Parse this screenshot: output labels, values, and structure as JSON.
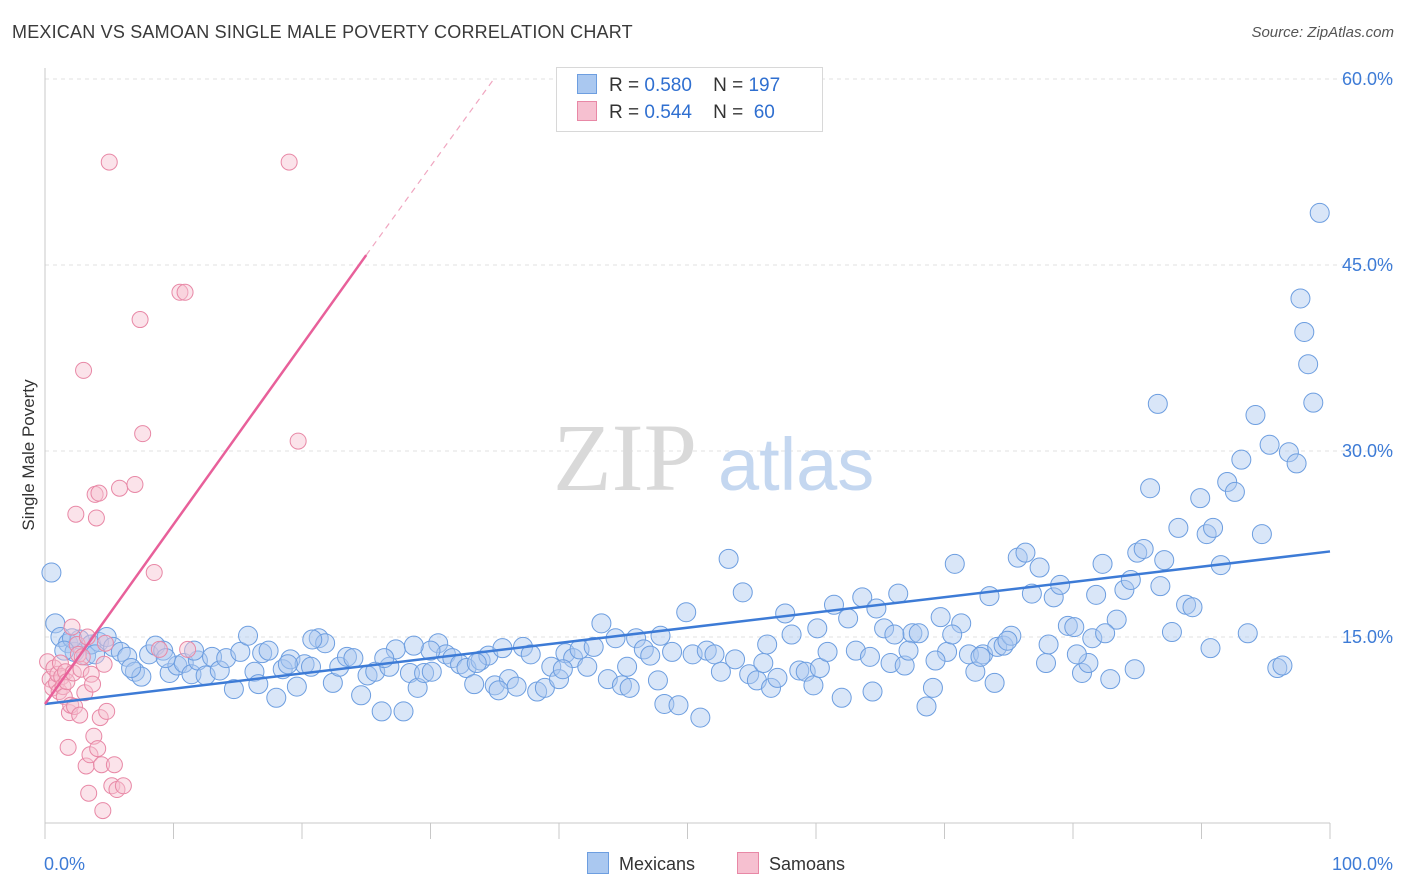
{
  "header": {
    "title": "MEXICAN VS SAMOAN SINGLE MALE POVERTY CORRELATION CHART",
    "source": "Source: ZipAtlas.com"
  },
  "watermark": {
    "zip": "ZIP",
    "atlas": "atlas"
  },
  "legend": {
    "rows": [
      {
        "r_label": "R =",
        "r_value": "0.580",
        "n_label": "N =",
        "n_value": "197",
        "color": "#aac8f0",
        "border": "#6d9ee0"
      },
      {
        "r_label": "R =",
        "r_value": "0.544",
        "n_label": "N =",
        "n_value": "60",
        "color": "#f6c0d0",
        "border": "#e888a6"
      }
    ]
  },
  "bottom_legend": [
    {
      "label": "Mexicans",
      "color": "#aac8f0",
      "border": "#6d9ee0"
    },
    {
      "label": "Samoans",
      "color": "#f6c0d0",
      "border": "#e888a6"
    }
  ],
  "chart_data": {
    "type": "scatter",
    "title": "MEXICAN VS SAMOAN SINGLE MALE POVERTY CORRELATION CHART",
    "xlabel": "",
    "ylabel": "Single Male Poverty",
    "xlim": [
      0,
      100
    ],
    "ylim": [
      0,
      60
    ],
    "x_tick_labels": [
      "0.0%",
      "100.0%"
    ],
    "y_ticks": [
      15,
      30,
      45,
      60
    ],
    "y_tick_labels": [
      "15.0%",
      "30.0%",
      "45.0%",
      "60.0%"
    ],
    "grid": true,
    "legend_position": "top-center",
    "colors": {
      "mexicans": "#3d7bd6",
      "samoans": "#e8609a"
    },
    "series": [
      {
        "name": "Mexicans",
        "r": 0.58,
        "n": 197,
        "trend": {
          "x": [
            0,
            100
          ],
          "y": [
            9.6,
            21.9
          ]
        },
        "points": [
          [
            0.5,
            20.2
          ],
          [
            0.8,
            16.1
          ],
          [
            1.2,
            15.0
          ],
          [
            1.8,
            14.5
          ],
          [
            2.3,
            13.8
          ],
          [
            2.7,
            14.8
          ],
          [
            3.2,
            13.5
          ],
          [
            3.6,
            14.4
          ],
          [
            4.2,
            14.6
          ],
          [
            4.8,
            15.0
          ],
          [
            5.3,
            14.2
          ],
          [
            5.9,
            13.8
          ],
          [
            6.4,
            13.4
          ],
          [
            7.0,
            12.2
          ],
          [
            7.5,
            11.8
          ],
          [
            8.1,
            13.6
          ],
          [
            8.6,
            14.3
          ],
          [
            9.2,
            13.9
          ],
          [
            9.7,
            12.1
          ],
          [
            10.3,
            12.7
          ],
          [
            10.8,
            12.9
          ],
          [
            11.4,
            12.0
          ],
          [
            11.9,
            13.1
          ],
          [
            12.5,
            11.9
          ],
          [
            13.0,
            13.4
          ],
          [
            13.6,
            12.3
          ],
          [
            14.1,
            13.3
          ],
          [
            14.7,
            10.8
          ],
          [
            15.2,
            13.8
          ],
          [
            15.8,
            15.1
          ],
          [
            16.3,
            12.2
          ],
          [
            16.9,
            13.7
          ],
          [
            17.4,
            13.9
          ],
          [
            18.0,
            10.1
          ],
          [
            18.5,
            12.4
          ],
          [
            19.1,
            13.2
          ],
          [
            19.6,
            11.0
          ],
          [
            20.2,
            12.8
          ],
          [
            20.7,
            12.6
          ],
          [
            21.3,
            14.9
          ],
          [
            21.8,
            14.5
          ],
          [
            22.4,
            11.3
          ],
          [
            22.9,
            12.6
          ],
          [
            23.5,
            13.4
          ],
          [
            24.0,
            13.3
          ],
          [
            24.6,
            10.3
          ],
          [
            25.1,
            11.9
          ],
          [
            25.7,
            12.2
          ],
          [
            26.2,
            9.0
          ],
          [
            26.8,
            12.6
          ],
          [
            27.3,
            14.0
          ],
          [
            27.9,
            9.0
          ],
          [
            28.4,
            12.1
          ],
          [
            29.0,
            10.9
          ],
          [
            29.5,
            12.1
          ],
          [
            30.1,
            12.2
          ],
          [
            30.6,
            14.5
          ],
          [
            31.2,
            13.6
          ],
          [
            31.7,
            13.3
          ],
          [
            32.3,
            12.8
          ],
          [
            32.8,
            12.5
          ],
          [
            33.4,
            11.2
          ],
          [
            33.9,
            13.1
          ],
          [
            34.5,
            13.5
          ],
          [
            35.0,
            11.1
          ],
          [
            35.6,
            14.1
          ],
          [
            36.1,
            11.6
          ],
          [
            36.7,
            11.0
          ],
          [
            37.2,
            14.2
          ],
          [
            37.8,
            13.6
          ],
          [
            38.3,
            10.6
          ],
          [
            38.9,
            10.9
          ],
          [
            39.4,
            12.6
          ],
          [
            40.0,
            11.6
          ],
          [
            40.5,
            13.7
          ],
          [
            41.1,
            13.3
          ],
          [
            41.6,
            14.0
          ],
          [
            42.2,
            12.6
          ],
          [
            42.7,
            14.2
          ],
          [
            43.3,
            16.1
          ],
          [
            43.8,
            11.6
          ],
          [
            44.4,
            14.9
          ],
          [
            44.9,
            11.1
          ],
          [
            45.5,
            10.9
          ],
          [
            46.0,
            14.9
          ],
          [
            46.6,
            14.0
          ],
          [
            47.1,
            13.5
          ],
          [
            47.7,
            11.5
          ],
          [
            48.2,
            9.6
          ],
          [
            48.8,
            13.8
          ],
          [
            49.3,
            9.5
          ],
          [
            49.9,
            17.0
          ],
          [
            50.4,
            13.6
          ],
          [
            51.0,
            8.5
          ],
          [
            51.5,
            13.9
          ],
          [
            52.1,
            13.6
          ],
          [
            52.6,
            12.2
          ],
          [
            53.2,
            21.3
          ],
          [
            53.7,
            13.2
          ],
          [
            54.3,
            18.6
          ],
          [
            54.8,
            12.0
          ],
          [
            55.4,
            11.5
          ],
          [
            55.9,
            12.9
          ],
          [
            56.5,
            10.9
          ],
          [
            57.0,
            11.7
          ],
          [
            57.6,
            16.9
          ],
          [
            58.1,
            15.2
          ],
          [
            58.7,
            12.3
          ],
          [
            59.2,
            12.2
          ],
          [
            59.8,
            11.1
          ],
          [
            60.3,
            12.5
          ],
          [
            60.9,
            13.8
          ],
          [
            61.4,
            17.6
          ],
          [
            62.0,
            10.1
          ],
          [
            62.5,
            16.5
          ],
          [
            63.1,
            13.9
          ],
          [
            63.6,
            18.2
          ],
          [
            64.2,
            13.4
          ],
          [
            64.7,
            17.3
          ],
          [
            65.3,
            15.7
          ],
          [
            65.8,
            12.9
          ],
          [
            66.4,
            18.5
          ],
          [
            66.9,
            12.7
          ],
          [
            67.5,
            15.3
          ],
          [
            68.0,
            15.3
          ],
          [
            68.6,
            9.4
          ],
          [
            69.1,
            10.9
          ],
          [
            69.7,
            16.6
          ],
          [
            70.2,
            13.8
          ],
          [
            70.8,
            20.9
          ],
          [
            71.3,
            16.1
          ],
          [
            71.9,
            13.6
          ],
          [
            72.4,
            12.2
          ],
          [
            73.0,
            13.6
          ],
          [
            73.5,
            18.3
          ],
          [
            74.1,
            14.2
          ],
          [
            74.6,
            14.3
          ],
          [
            75.2,
            15.1
          ],
          [
            75.7,
            21.4
          ],
          [
            76.3,
            21.8
          ],
          [
            76.8,
            18.5
          ],
          [
            77.4,
            20.6
          ],
          [
            77.9,
            12.9
          ],
          [
            78.5,
            18.2
          ],
          [
            79.0,
            19.2
          ],
          [
            79.6,
            15.9
          ],
          [
            80.1,
            15.8
          ],
          [
            80.7,
            12.1
          ],
          [
            81.2,
            12.9
          ],
          [
            81.8,
            18.4
          ],
          [
            82.3,
            20.9
          ],
          [
            82.9,
            11.6
          ],
          [
            83.4,
            16.4
          ],
          [
            84.0,
            18.8
          ],
          [
            84.5,
            19.6
          ],
          [
            85.0,
            21.8
          ],
          [
            85.5,
            22.1
          ],
          [
            86.0,
            27.0
          ],
          [
            86.6,
            33.8
          ],
          [
            87.1,
            21.2
          ],
          [
            87.7,
            15.4
          ],
          [
            88.2,
            23.8
          ],
          [
            88.8,
            17.6
          ],
          [
            89.3,
            17.4
          ],
          [
            89.9,
            26.2
          ],
          [
            90.4,
            23.3
          ],
          [
            90.9,
            23.8
          ],
          [
            91.5,
            20.8
          ],
          [
            92.0,
            27.5
          ],
          [
            92.6,
            26.7
          ],
          [
            93.1,
            29.3
          ],
          [
            93.6,
            15.3
          ],
          [
            94.2,
            32.9
          ],
          [
            94.7,
            23.3
          ],
          [
            95.3,
            30.5
          ],
          [
            95.9,
            12.5
          ],
          [
            96.3,
            12.7
          ],
          [
            96.8,
            29.9
          ],
          [
            97.4,
            29.0
          ],
          [
            97.7,
            42.3
          ],
          [
            98.0,
            39.6
          ],
          [
            98.3,
            37.0
          ],
          [
            98.7,
            33.9
          ],
          [
            99.2,
            49.2
          ],
          [
            30.0,
            13.9
          ],
          [
            40.3,
            12.4
          ],
          [
            45.3,
            12.6
          ],
          [
            69.3,
            13.1
          ],
          [
            70.6,
            15.2
          ],
          [
            72.8,
            13.4
          ],
          [
            73.9,
            11.3
          ],
          [
            74.9,
            14.7
          ],
          [
            78.1,
            14.4
          ],
          [
            80.3,
            13.6
          ],
          [
            81.5,
            14.9
          ],
          [
            82.5,
            15.3
          ],
          [
            84.8,
            12.4
          ],
          [
            86.8,
            19.1
          ],
          [
            90.7,
            14.1
          ],
          [
            35.3,
            10.7
          ],
          [
            33.6,
            12.9
          ],
          [
            28.7,
            14.3
          ],
          [
            26.4,
            13.3
          ],
          [
            20.8,
            14.8
          ],
          [
            18.9,
            12.8
          ],
          [
            16.6,
            11.2
          ],
          [
            11.6,
            13.9
          ],
          [
            9.4,
            13.3
          ],
          [
            6.7,
            12.5
          ],
          [
            3.9,
            13.6
          ],
          [
            2.1,
            14.9
          ],
          [
            1.5,
            13.9
          ],
          [
            47.9,
            15.1
          ],
          [
            56.2,
            14.4
          ],
          [
            60.1,
            15.7
          ],
          [
            64.4,
            10.6
          ],
          [
            66.1,
            15.2
          ],
          [
            67.2,
            13.9
          ]
        ]
      },
      {
        "name": "Samoans",
        "r": 0.544,
        "n": 60,
        "trend": {
          "x": [
            0,
            25
          ],
          "y": [
            9.6,
            45.8
          ]
        },
        "trend_extension": {
          "x": [
            25,
            35
          ],
          "y": [
            45.8,
            60.1
          ]
        },
        "points": [
          [
            0.2,
            13.0
          ],
          [
            0.4,
            11.6
          ],
          [
            0.6,
            10.9
          ],
          [
            0.7,
            12.5
          ],
          [
            0.9,
            11.3
          ],
          [
            1.0,
            12.0
          ],
          [
            1.1,
            10.6
          ],
          [
            1.2,
            12.9
          ],
          [
            1.3,
            11.8
          ],
          [
            1.4,
            11.0
          ],
          [
            1.5,
            10.2
          ],
          [
            1.6,
            12.2
          ],
          [
            1.7,
            11.4
          ],
          [
            1.8,
            6.1
          ],
          [
            1.9,
            8.9
          ],
          [
            2.0,
            9.5
          ],
          [
            2.1,
            15.8
          ],
          [
            2.2,
            12.1
          ],
          [
            2.3,
            9.4
          ],
          [
            2.4,
            24.9
          ],
          [
            2.5,
            14.4
          ],
          [
            2.6,
            13.6
          ],
          [
            2.7,
            8.7
          ],
          [
            2.8,
            12.4
          ],
          [
            2.9,
            13.4
          ],
          [
            3.0,
            36.5
          ],
          [
            3.1,
            10.5
          ],
          [
            3.2,
            4.6
          ],
          [
            3.3,
            15.0
          ],
          [
            3.4,
            2.4
          ],
          [
            3.5,
            5.5
          ],
          [
            3.6,
            12.0
          ],
          [
            3.7,
            11.2
          ],
          [
            3.8,
            7.0
          ],
          [
            3.9,
            26.5
          ],
          [
            4.0,
            24.6
          ],
          [
            4.1,
            6.0
          ],
          [
            4.2,
            26.6
          ],
          [
            4.3,
            8.5
          ],
          [
            4.4,
            4.7
          ],
          [
            4.5,
            1.0
          ],
          [
            4.6,
            12.8
          ],
          [
            4.7,
            14.5
          ],
          [
            4.8,
            9.0
          ],
          [
            5.0,
            53.3
          ],
          [
            5.2,
            3.0
          ],
          [
            5.4,
            4.7
          ],
          [
            5.6,
            2.7
          ],
          [
            5.8,
            27.0
          ],
          [
            6.1,
            3.0
          ],
          [
            7.0,
            27.3
          ],
          [
            7.4,
            40.6
          ],
          [
            7.6,
            31.4
          ],
          [
            8.5,
            20.2
          ],
          [
            8.9,
            14.0
          ],
          [
            10.5,
            42.8
          ],
          [
            10.9,
            42.8
          ],
          [
            11.1,
            14.0
          ],
          [
            19.0,
            53.3
          ],
          [
            19.7,
            30.8
          ]
        ]
      }
    ]
  }
}
